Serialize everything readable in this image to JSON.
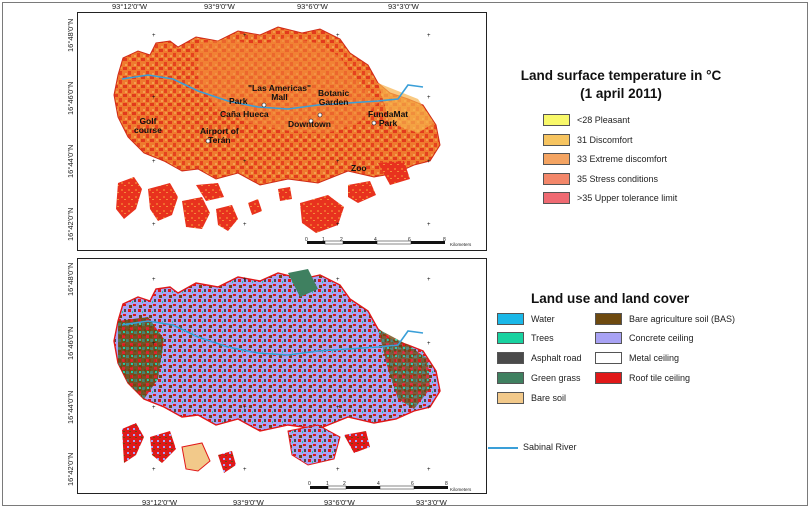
{
  "colors": {
    "hot": "#e8321e",
    "warm": "#f07c2a",
    "river": "#3a9fd8",
    "frame": "#222222"
  },
  "top_map": {
    "x_ticks": [
      "93°12'0\"W",
      "93°9'0\"W",
      "93°6'0\"W",
      "93°3'0\"W"
    ],
    "y_ticks": [
      "16°48'0\"N",
      "16°46'0\"N",
      "16°44'0\"N",
      "16°42'0\"N"
    ],
    "places": [
      {
        "id": "golf",
        "text": "Golf\ncourse"
      },
      {
        "id": "park",
        "text": "Park"
      },
      {
        "id": "americas",
        "text": "\"Las Americas\"\nMall"
      },
      {
        "id": "botanic",
        "text": "Botanic\nGarden"
      },
      {
        "id": "canahueca",
        "text": "Caña Hueca"
      },
      {
        "id": "downtown",
        "text": "Downtown"
      },
      {
        "id": "fundamat",
        "text": "FundaMat\nPark"
      },
      {
        "id": "airport",
        "text": "Airport of\nTerán"
      },
      {
        "id": "zoo",
        "text": "Zoo"
      }
    ],
    "scale": {
      "labels": [
        "0",
        "1",
        "2",
        "4",
        "6",
        "8"
      ],
      "unit": "Kilometers"
    }
  },
  "bottom_map": {
    "x_ticks": [
      "93°12'0\"W",
      "93°9'0\"W",
      "93°6'0\"W",
      "93°3'0\"W"
    ],
    "y_ticks": [
      "16°48'0\"N",
      "16°46'0\"N",
      "16°44'0\"N",
      "16°42'0\"N"
    ],
    "scale": {
      "labels": [
        "0",
        "1",
        "2",
        "4",
        "6",
        "8"
      ],
      "unit": "Kilometers"
    }
  },
  "lst_legend": {
    "title_line1": "Land surface temperature in °C",
    "title_line2": "(1 april 2011)",
    "items": [
      {
        "label": "<28  Pleasant",
        "color": "#f8f86a"
      },
      {
        "label": "31  Discomfort",
        "color": "#f6c460"
      },
      {
        "label": "33  Extreme discomfort",
        "color": "#f4a462"
      },
      {
        "label": "35  Stress conditions",
        "color": "#f3876a"
      },
      {
        "label": ">35  Upper tolerance limit",
        "color": "#ef6a72"
      }
    ]
  },
  "lulc_legend": {
    "title": "Land use and land cover",
    "items": [
      {
        "label": "Water",
        "color": "#1ab8e8"
      },
      {
        "label": "Trees",
        "color": "#18d2a0"
      },
      {
        "label": "Asphalt road",
        "color": "#4a4a4a"
      },
      {
        "label": "Green grass",
        "color": "#3f8060"
      },
      {
        "label": "Bare soil",
        "color": "#f2c98a"
      },
      {
        "label": "Bare agriculture soil (BAS)",
        "color": "#6e4a10"
      },
      {
        "label": "Concrete ceiling",
        "color": "#a8a2f4"
      },
      {
        "label": "Metal ceiling",
        "color": "#ffffff"
      },
      {
        "label": "Roof tile ceiling",
        "color": "#e01818"
      }
    ],
    "river_label": "Sabinal River"
  }
}
